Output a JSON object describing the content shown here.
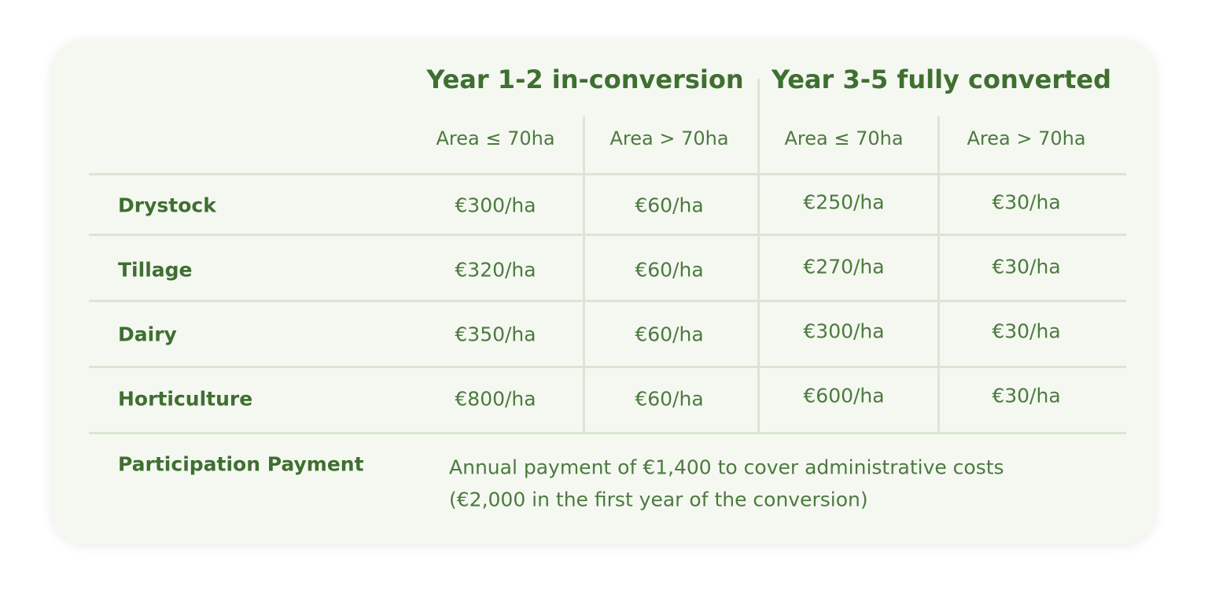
{
  "table": {
    "group_headers": [
      "Year 1-2 in-conversion",
      "Year 3-5 fully converted"
    ],
    "sub_headers": [
      "Area ≤ 70ha",
      "Area > 70ha",
      "Area ≤ 70ha",
      "Area > 70ha"
    ],
    "rows": [
      [
        "Drystock",
        "€300/ha",
        "€60/ha",
        "€250/ha",
        "€30/ha"
      ],
      [
        "Tillage",
        "€320/ha",
        "€60/ha",
        "€270/ha",
        "€30/ha"
      ],
      [
        "Dairy",
        "€350/ha",
        "€60/ha",
        "€300/ha",
        "€30/ha"
      ],
      [
        "Horticulture",
        "€800/ha",
        "€60/ha",
        "€600/ha",
        "€30/ha"
      ]
    ],
    "participation": {
      "label": "Participation Payment",
      "lines": [
        "Annual payment of €1,400 to cover administrative costs",
        "(€2,000 in the first year of the conversion)"
      ]
    }
  }
}
